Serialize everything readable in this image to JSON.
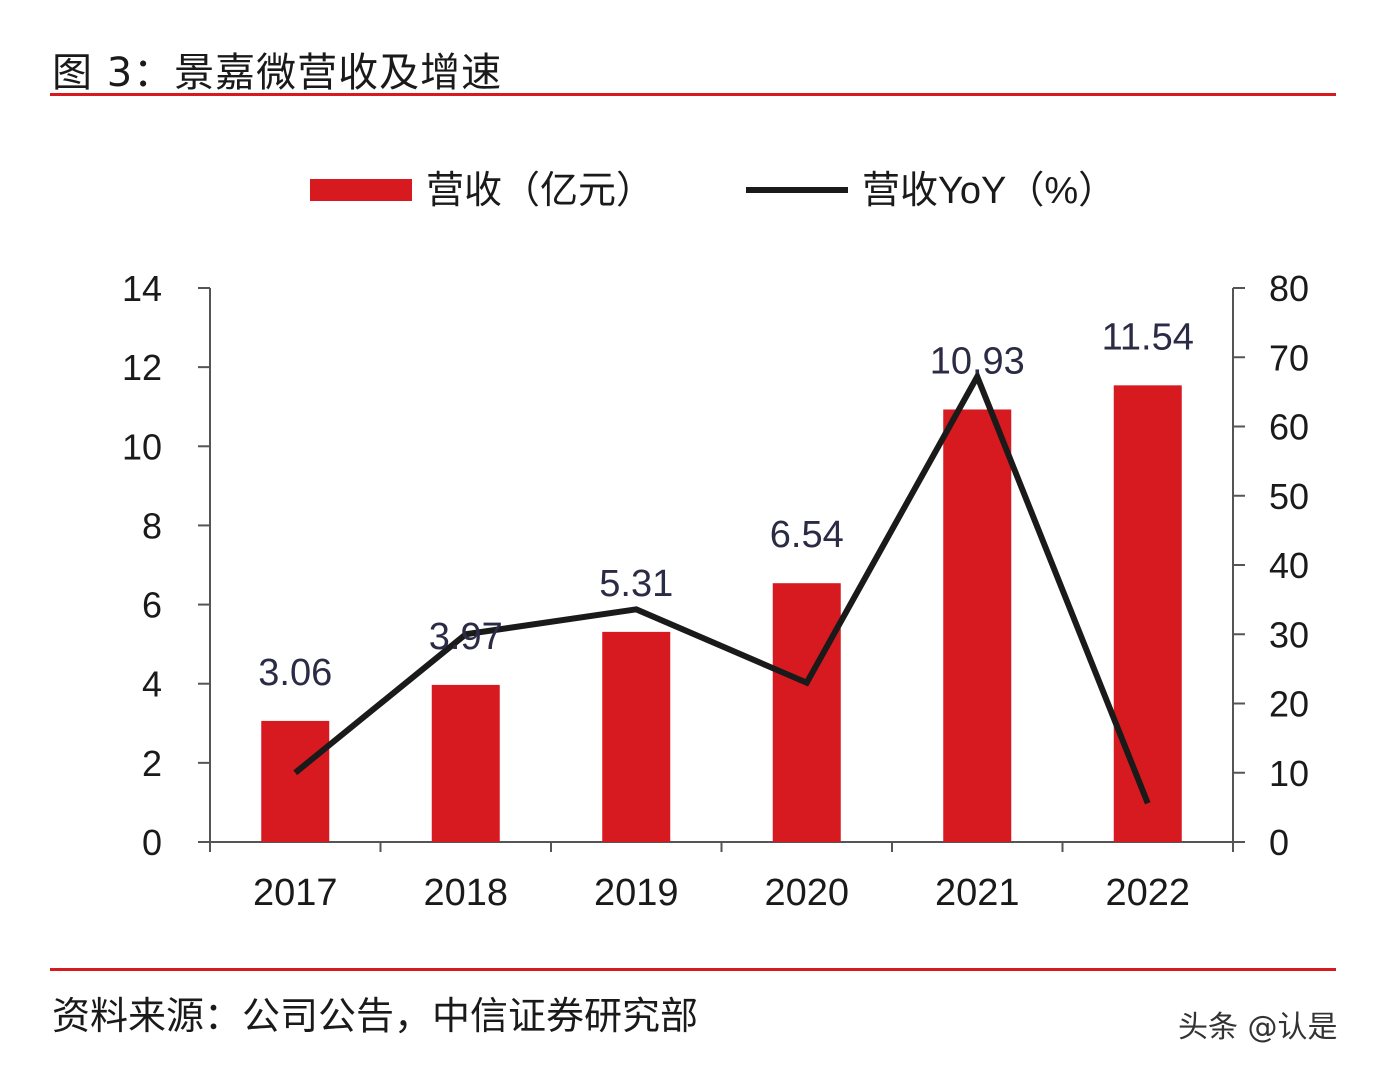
{
  "figure": {
    "title": "图 3：景嘉微营收及增速",
    "source": "资料来源：公司公告，中信证券研究部",
    "watermark": "头条 @认是"
  },
  "chart_data": {
    "type": "bar",
    "categories": [
      "2017",
      "2018",
      "2019",
      "2020",
      "2021",
      "2022"
    ],
    "series": [
      {
        "name": "营收（亿元）",
        "type": "bar",
        "axis": "left",
        "color": "#d71920",
        "values": [
          3.06,
          3.97,
          5.31,
          6.54,
          10.93,
          11.54
        ],
        "labels": [
          "3.06",
          "3.97",
          "5.31",
          "6.54",
          "10.93",
          "11.54"
        ]
      },
      {
        "name": "营收YoY（%）",
        "type": "line",
        "axis": "right",
        "color": "#1a1a1a",
        "values": [
          10,
          30,
          33.6,
          23,
          67.2,
          5.6
        ]
      }
    ],
    "left_axis": {
      "ylim": [
        0,
        14
      ],
      "ticks": [
        "0",
        "2",
        "4",
        "6",
        "8",
        "10",
        "12",
        "14"
      ]
    },
    "right_axis": {
      "ylim": [
        0,
        80
      ],
      "ticks": [
        "0",
        "10",
        "20",
        "30",
        "40",
        "50",
        "60",
        "70",
        "80"
      ]
    },
    "legend": "top-center",
    "grid": false,
    "label_color": "#2b2b45"
  }
}
